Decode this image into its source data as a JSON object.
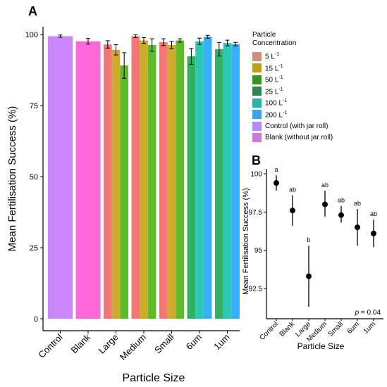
{
  "panel_labels": {
    "a": "A",
    "b": "B"
  },
  "legend": {
    "title_line1": "Particle",
    "title_line2": "Concentration",
    "items": [
      {
        "base": "5 L",
        "sup": "-1",
        "color": "#ce8f7d"
      },
      {
        "base": "15 L",
        "sup": "-1",
        "color": "#bf9f1d"
      },
      {
        "base": "50 L",
        "sup": "-1",
        "color": "#36971f"
      },
      {
        "base": "25 L",
        "sup": "-1",
        "color": "#2c8850"
      },
      {
        "base": "100 L",
        "sup": "-1",
        "color": "#2eb3a1"
      },
      {
        "base": "200 L",
        "sup": "-1",
        "color": "#3da3f0"
      },
      {
        "base": "Control (with jar roll)",
        "sup": "",
        "color": "#b88af5"
      },
      {
        "base": "Blank (without jar roll)",
        "sup": "",
        "color": "#d07ad8"
      }
    ]
  },
  "chart_data": [
    {
      "type": "bar",
      "panel": "A",
      "xlabel": "Particle Size",
      "ylabel": "Mean Fertilisation Success (%)",
      "ylim": [
        0,
        100
      ],
      "yticks": [
        0,
        25,
        50,
        75,
        100
      ],
      "categories": [
        "Control",
        "Blank",
        "Large",
        "Medium",
        "Small",
        "6um",
        "1um"
      ],
      "groups": [
        {
          "category": "Control",
          "bars": [
            {
              "value": 99.4,
              "err": 0.4,
              "color": "#c77dff"
            }
          ]
        },
        {
          "category": "Blank",
          "bars": [
            {
              "value": 97.6,
              "err": 1.0,
              "color": "#ff5bd6"
            }
          ]
        },
        {
          "category": "Large",
          "bars": [
            {
              "value": 96.5,
              "err": 1.3,
              "color": "#f46a6a"
            },
            {
              "value": 94.6,
              "err": 1.8,
              "color": "#c9a51a"
            },
            {
              "value": 89.1,
              "err": 4.5,
              "color": "#52b51a"
            }
          ]
        },
        {
          "category": "Medium",
          "bars": [
            {
              "value": 99.4,
              "err": 0.5,
              "color": "#f46a6a"
            },
            {
              "value": 97.9,
              "err": 1.0,
              "color": "#c9a51a"
            },
            {
              "value": 96.3,
              "err": 2.2,
              "color": "#52b51a"
            }
          ]
        },
        {
          "category": "Small",
          "bars": [
            {
              "value": 97.3,
              "err": 1.2,
              "color": "#f46a6a"
            },
            {
              "value": 96.3,
              "err": 1.3,
              "color": "#c9a51a"
            },
            {
              "value": 97.9,
              "err": 0.6,
              "color": "#52b51a"
            }
          ]
        },
        {
          "category": "6um",
          "bars": [
            {
              "value": 92.3,
              "err": 2.8,
              "color": "#1faa5b"
            },
            {
              "value": 97.6,
              "err": 1.1,
              "color": "#1cc4b0"
            },
            {
              "value": 99.2,
              "err": 0.5,
              "color": "#27a7ff"
            }
          ]
        },
        {
          "category": "1um",
          "bars": [
            {
              "value": 94.8,
              "err": 2.4,
              "color": "#1faa5b"
            },
            {
              "value": 97.0,
              "err": 1.0,
              "color": "#1cc4b0"
            },
            {
              "value": 96.6,
              "err": 0.6,
              "color": "#27a7ff"
            }
          ]
        }
      ]
    },
    {
      "type": "scatter",
      "panel": "B",
      "xlabel": "Particle Size",
      "ylabel": "Mean Fertilisation Success (%)",
      "ylim": [
        90.5,
        100.6
      ],
      "yticks": [
        92.5,
        95,
        97.5,
        100
      ],
      "ytick_labels": [
        "92.5",
        "95",
        "97.5",
        "100"
      ],
      "categories": [
        "Control",
        "Blank",
        "Large",
        "Medium",
        "Small",
        "6um",
        "1um"
      ],
      "values": [
        99.4,
        97.6,
        93.3,
        98.0,
        97.3,
        96.5,
        96.1
      ],
      "lower": [
        98.9,
        96.6,
        91.3,
        97.2,
        96.8,
        95.3,
        95.2
      ],
      "upper": [
        99.9,
        98.6,
        95.3,
        98.9,
        97.9,
        97.7,
        97.0
      ],
      "letters": [
        "a",
        "ab",
        "b",
        "ab",
        "ab",
        "ab",
        "ab"
      ],
      "annotation_p": "p",
      "annotation_value": " = 0.04"
    }
  ]
}
